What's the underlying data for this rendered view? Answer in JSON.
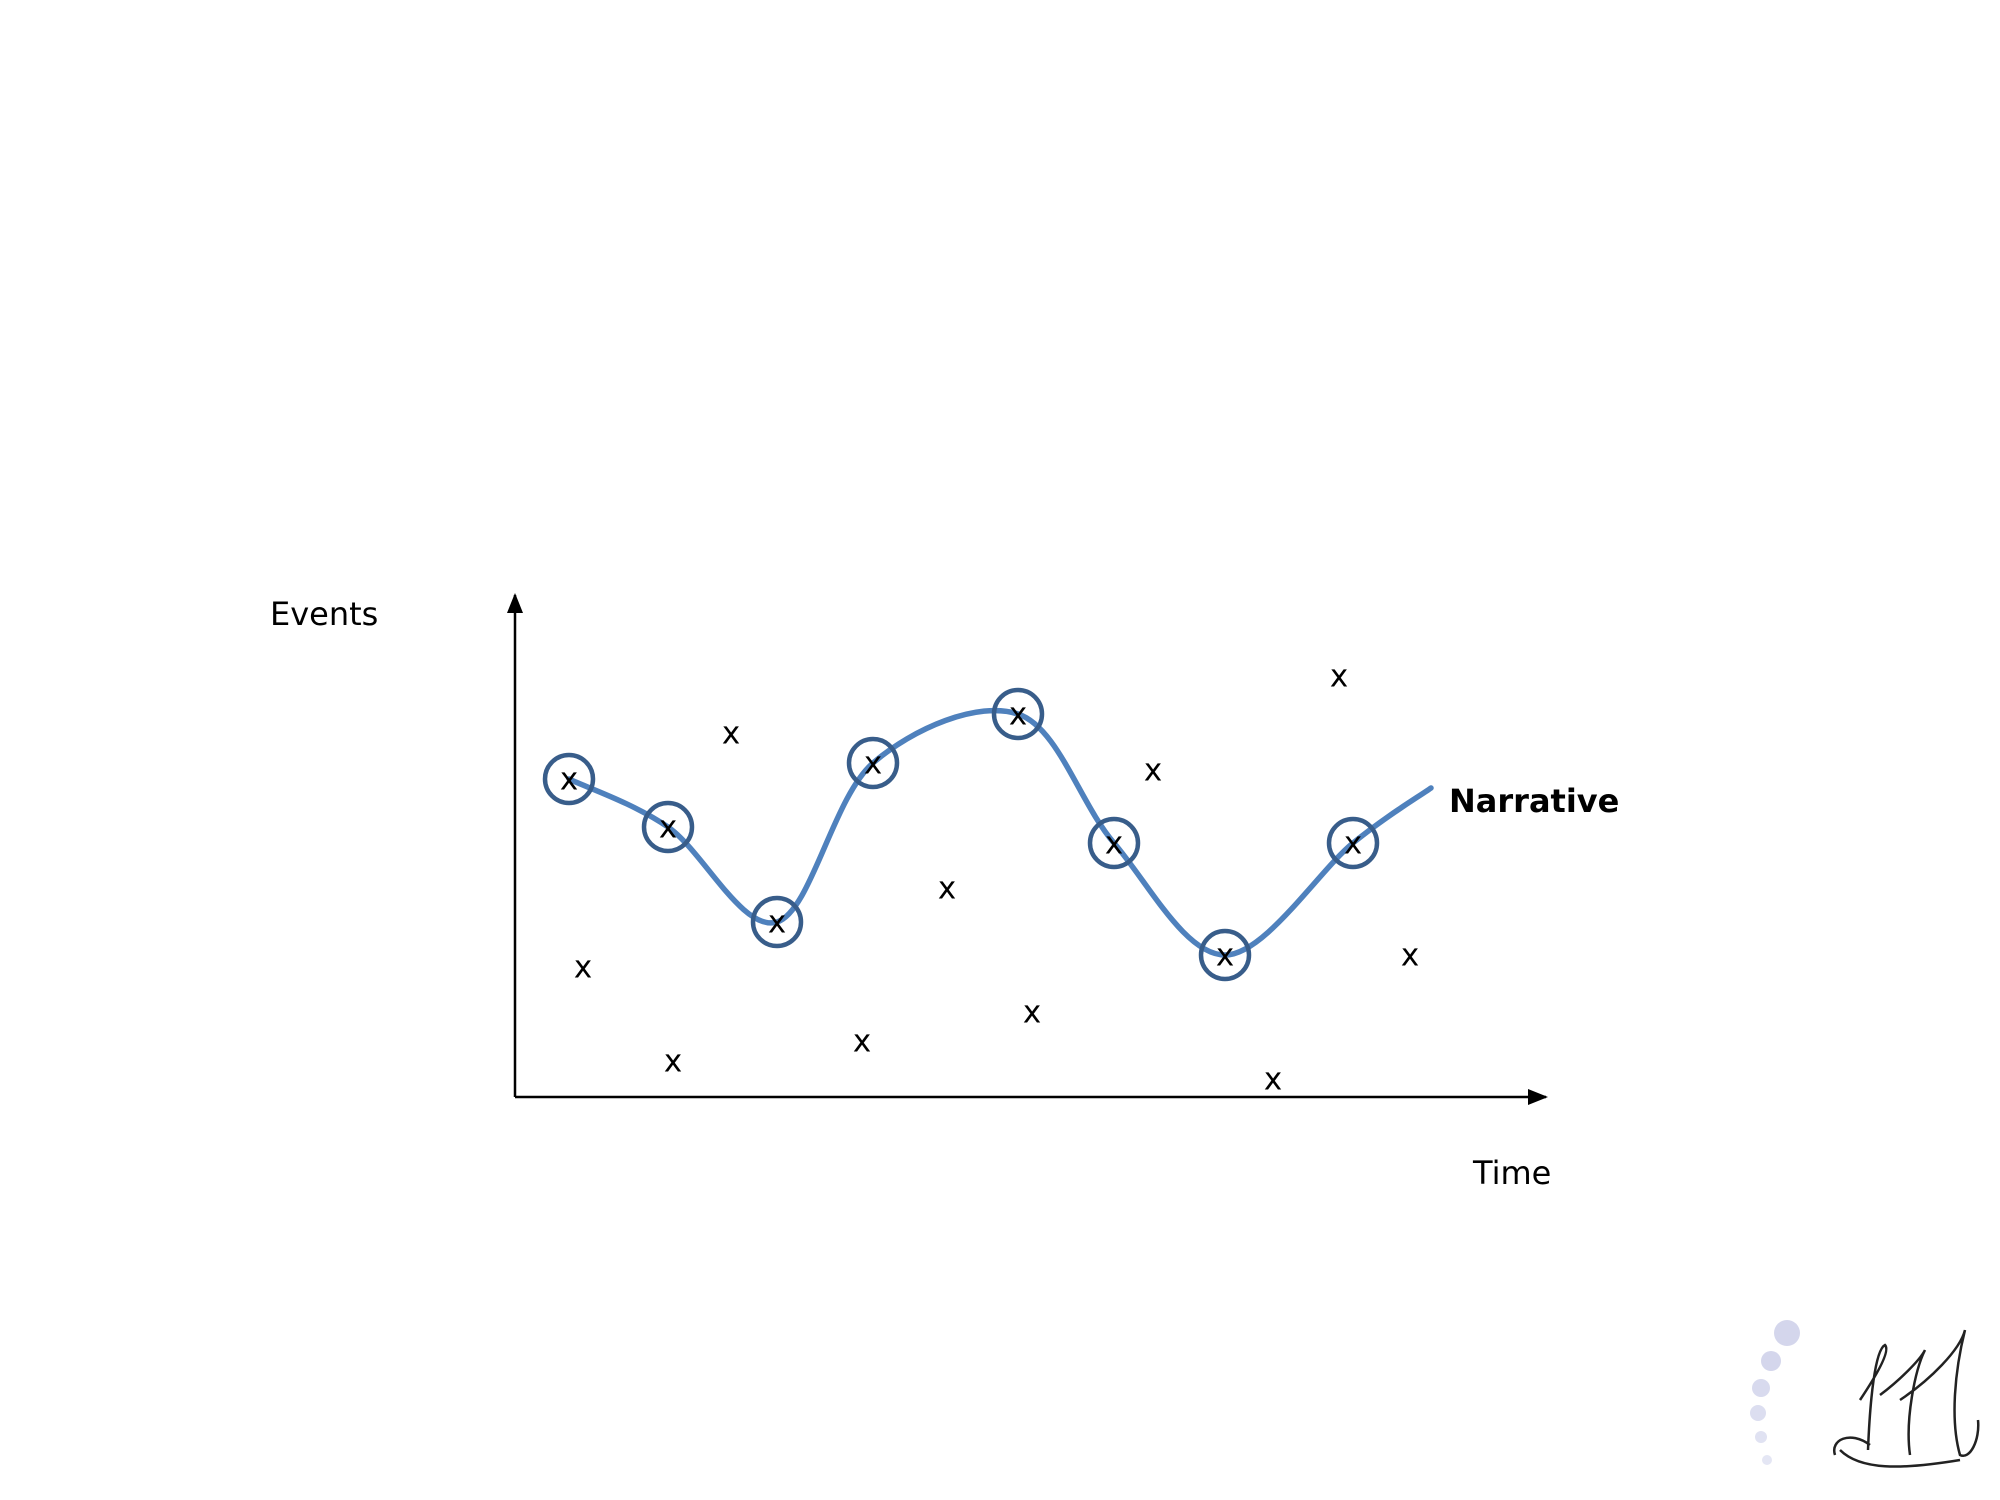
{
  "labels": {
    "y_axis": "Events",
    "x_axis": "Time",
    "narrative": "Narrative"
  },
  "narrative_events": [
    {
      "label": "x"
    },
    {
      "label": "x"
    },
    {
      "label": "x"
    },
    {
      "label": "x"
    },
    {
      "label": "x"
    },
    {
      "label": "x"
    },
    {
      "label": "x"
    },
    {
      "label": "x"
    }
  ],
  "other_events": [
    {
      "label": "x"
    },
    {
      "label": "x"
    },
    {
      "label": "x"
    },
    {
      "label": "x"
    },
    {
      "label": "x"
    },
    {
      "label": "x"
    },
    {
      "label": "x"
    },
    {
      "label": "x"
    },
    {
      "label": "x"
    },
    {
      "label": "x"
    }
  ]
}
